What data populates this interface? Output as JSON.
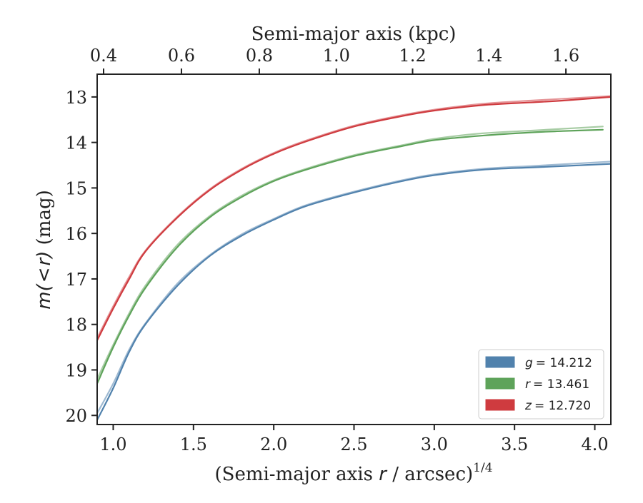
{
  "chart_data": {
    "type": "line",
    "title": "",
    "xlabel": {
      "prefix": "(Semi-major axis ",
      "var": "r",
      "suffix": " / arcsec)",
      "power": "1/4"
    },
    "x2label": "Semi-major axis (kpc)",
    "ylabel": {
      "var_m": "m",
      "open": "(",
      "lt": "<",
      "var_r": "r",
      "close": ")",
      "unit": " (mag)"
    },
    "xlim": [
      0.9,
      4.1
    ],
    "ylim": [
      20.2,
      12.5
    ],
    "y_inverted": true,
    "xticks": [
      "1.0",
      "1.5",
      "2.0",
      "2.5",
      "3.0",
      "3.5",
      "4.0"
    ],
    "yticks": [
      "13",
      "14",
      "15",
      "16",
      "17",
      "18",
      "19",
      "20"
    ],
    "x2ticks": [
      "0.4",
      "0.6",
      "0.8",
      "1.0",
      "1.2",
      "1.4",
      "1.6"
    ],
    "x2_scale": {
      "description": "top axis shows semi-major axis in kpc; bottom shows (semi-major axis in arcsec)^(1/4)",
      "tick_positions_on_bottom_axis": [
        0.94,
        1.425,
        1.91,
        2.39,
        2.865,
        3.34,
        3.82
      ]
    },
    "grid": false,
    "legend_position": "lower-right",
    "series": [
      {
        "name": "g = 14.212",
        "legend_var": "g",
        "legend_value": "= 14.212",
        "color": "#5182ad",
        "x": [
          0.9,
          1.0,
          1.1,
          1.2,
          1.4,
          1.6,
          1.8,
          2.0,
          2.2,
          2.5,
          2.8,
          3.0,
          3.3,
          3.6,
          3.8,
          4.1
        ],
        "values": [
          20.1,
          19.4,
          18.6,
          18.0,
          17.15,
          16.5,
          16.05,
          15.7,
          15.4,
          15.1,
          14.85,
          14.72,
          14.6,
          14.55,
          14.52,
          14.47
        ],
        "upper": [
          19.95,
          19.3,
          18.55,
          17.98,
          17.1,
          16.48,
          16.02,
          15.68,
          15.38,
          15.08,
          14.83,
          14.7,
          14.58,
          14.52,
          14.48,
          14.42
        ]
      },
      {
        "name": "r = 13.461",
        "legend_var": "r",
        "legend_value": "= 13.461",
        "color": "#5ea35a",
        "x": [
          0.9,
          1.0,
          1.1,
          1.2,
          1.4,
          1.6,
          1.8,
          2.0,
          2.2,
          2.5,
          2.8,
          3.0,
          3.3,
          3.6,
          3.8,
          4.05
        ],
        "values": [
          19.3,
          18.5,
          17.8,
          17.2,
          16.3,
          15.65,
          15.2,
          14.85,
          14.6,
          14.3,
          14.08,
          13.95,
          13.85,
          13.78,
          13.75,
          13.72
        ],
        "upper": [
          19.2,
          18.45,
          17.75,
          17.15,
          16.25,
          15.62,
          15.17,
          14.83,
          14.58,
          14.28,
          14.06,
          13.92,
          13.8,
          13.74,
          13.7,
          13.65
        ]
      },
      {
        "name": "z = 12.720",
        "legend_var": "z",
        "legend_value": "= 12.720",
        "color": "#cf3b3f",
        "x": [
          0.9,
          1.0,
          1.1,
          1.2,
          1.4,
          1.6,
          1.8,
          2.0,
          2.2,
          2.5,
          2.8,
          3.0,
          3.3,
          3.6,
          3.8,
          4.1
        ],
        "values": [
          18.35,
          17.65,
          17.0,
          16.4,
          15.65,
          15.05,
          14.6,
          14.25,
          13.98,
          13.65,
          13.42,
          13.3,
          13.18,
          13.12,
          13.08,
          13.0
        ],
        "upper": [
          18.3,
          17.6,
          16.95,
          16.38,
          15.63,
          15.03,
          14.58,
          14.23,
          13.96,
          13.63,
          13.4,
          13.28,
          13.15,
          13.08,
          13.04,
          12.98
        ]
      }
    ]
  }
}
